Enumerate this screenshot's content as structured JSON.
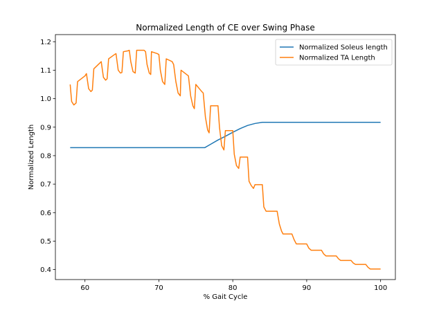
{
  "chart_data": {
    "type": "line",
    "title": "Normalized Length of CE over Swing Phase",
    "xlabel": "% Gait Cycle",
    "ylabel": "Normalized Length",
    "xlim": [
      56,
      102
    ],
    "ylim": [
      0.365,
      1.225
    ],
    "x_ticks": [
      60,
      70,
      80,
      90,
      100
    ],
    "y_ticks": [
      0.4,
      0.5,
      0.6,
      0.7,
      0.8,
      0.9,
      1.0,
      1.1,
      1.2
    ],
    "x_tick_labels": [
      "60",
      "70",
      "80",
      "90",
      "100"
    ],
    "y_tick_labels": [
      "0.4",
      "0.5",
      "0.6",
      "0.7",
      "0.8",
      "0.9",
      "1.0",
      "1.1",
      "1.2"
    ],
    "legend_position": "top-right",
    "grid": false,
    "series": [
      {
        "name": "Normalized Soleus length",
        "color": "#1f77b4",
        "points": [
          [
            58,
            0.828
          ],
          [
            76.2,
            0.828
          ],
          [
            77,
            0.84
          ],
          [
            78,
            0.855
          ],
          [
            79,
            0.868
          ],
          [
            80,
            0.882
          ],
          [
            81,
            0.895
          ],
          [
            82,
            0.906
          ],
          [
            83,
            0.913
          ],
          [
            84,
            0.917
          ],
          [
            100,
            0.917
          ]
        ]
      },
      {
        "name": "Normalized TA Length",
        "color": "#ff7f0e",
        "points": [
          [
            58,
            1.05
          ],
          [
            58.2,
            0.99
          ],
          [
            58.5,
            0.978
          ],
          [
            58.8,
            0.985
          ],
          [
            59,
            1.06
          ],
          [
            60,
            1.08
          ],
          [
            60.2,
            1.088
          ],
          [
            60.5,
            1.035
          ],
          [
            60.8,
            1.025
          ],
          [
            61,
            1.03
          ],
          [
            61.2,
            1.105
          ],
          [
            62,
            1.125
          ],
          [
            62.2,
            1.13
          ],
          [
            62.5,
            1.075
          ],
          [
            62.8,
            1.065
          ],
          [
            63,
            1.07
          ],
          [
            63.2,
            1.14
          ],
          [
            64,
            1.155
          ],
          [
            64.2,
            1.158
          ],
          [
            64.5,
            1.1
          ],
          [
            64.8,
            1.09
          ],
          [
            65,
            1.092
          ],
          [
            65.2,
            1.165
          ],
          [
            65.8,
            1.168
          ],
          [
            66,
            1.17
          ],
          [
            66.2,
            1.13
          ],
          [
            66.5,
            1.095
          ],
          [
            66.8,
            1.09
          ],
          [
            67,
            1.17
          ],
          [
            68,
            1.17
          ],
          [
            68.2,
            1.165
          ],
          [
            68.4,
            1.12
          ],
          [
            68.7,
            1.09
          ],
          [
            68.9,
            1.085
          ],
          [
            69,
            1.165
          ],
          [
            69.8,
            1.158
          ],
          [
            70,
            1.155
          ],
          [
            70.2,
            1.1
          ],
          [
            70.5,
            1.06
          ],
          [
            70.8,
            1.05
          ],
          [
            71,
            1.14
          ],
          [
            71.8,
            1.13
          ],
          [
            72,
            1.12
          ],
          [
            72.3,
            1.06
          ],
          [
            72.6,
            1.02
          ],
          [
            72.9,
            1.01
          ],
          [
            73,
            1.1
          ],
          [
            74,
            1.08
          ],
          [
            74.3,
            1.01
          ],
          [
            74.6,
            0.975
          ],
          [
            74.8,
            0.965
          ],
          [
            75,
            1.05
          ],
          [
            75.8,
            1.025
          ],
          [
            76,
            1.02
          ],
          [
            76.3,
            0.935
          ],
          [
            76.6,
            0.89
          ],
          [
            76.8,
            0.88
          ],
          [
            77,
            0.975
          ],
          [
            78,
            0.975
          ],
          [
            78.2,
            0.9
          ],
          [
            78.5,
            0.835
          ],
          [
            78.8,
            0.82
          ],
          [
            79,
            0.888
          ],
          [
            80,
            0.888
          ],
          [
            80.2,
            0.805
          ],
          [
            80.5,
            0.765
          ],
          [
            80.8,
            0.755
          ],
          [
            81,
            0.795
          ],
          [
            82,
            0.795
          ],
          [
            82.2,
            0.71
          ],
          [
            82.5,
            0.695
          ],
          [
            82.8,
            0.685
          ],
          [
            83,
            0.698
          ],
          [
            84,
            0.698
          ],
          [
            84.2,
            0.62
          ],
          [
            84.5,
            0.605
          ],
          [
            86,
            0.605
          ],
          [
            86.3,
            0.56
          ],
          [
            86.6,
            0.535
          ],
          [
            86.8,
            0.525
          ],
          [
            88,
            0.525
          ],
          [
            88.3,
            0.505
          ],
          [
            88.6,
            0.49
          ],
          [
            90,
            0.49
          ],
          [
            90.3,
            0.475
          ],
          [
            90.6,
            0.468
          ],
          [
            92,
            0.468
          ],
          [
            92.3,
            0.455
          ],
          [
            92.6,
            0.448
          ],
          [
            94,
            0.448
          ],
          [
            94.3,
            0.438
          ],
          [
            94.6,
            0.432
          ],
          [
            96,
            0.432
          ],
          [
            96.3,
            0.423
          ],
          [
            96.6,
            0.418
          ],
          [
            98,
            0.418
          ],
          [
            98.3,
            0.408
          ],
          [
            98.6,
            0.402
          ],
          [
            100,
            0.402
          ]
        ]
      }
    ]
  }
}
